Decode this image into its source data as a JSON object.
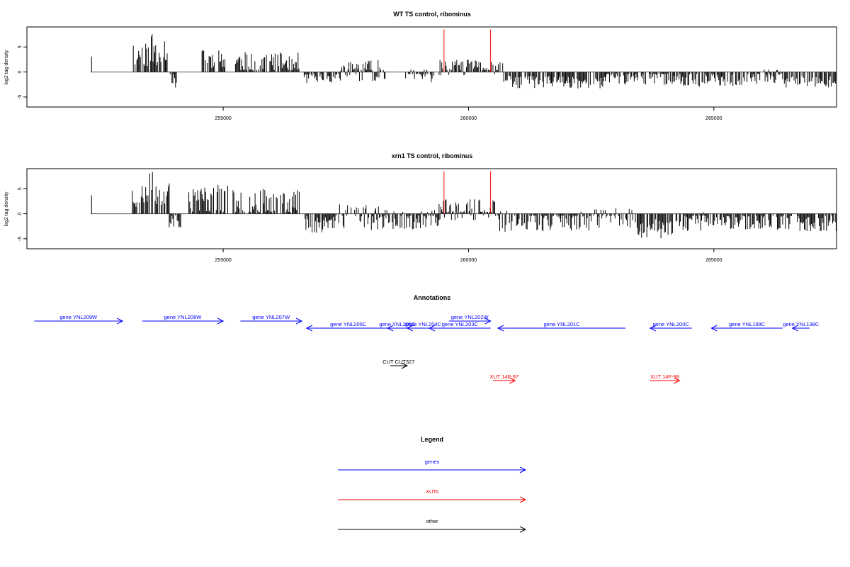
{
  "chart_data": [
    {
      "type": "bar",
      "title": "WT TS control, ribominus",
      "ylabel": "log2 tag density",
      "xlabel": "",
      "xlim": [
        251000,
        267500
      ],
      "ylim": [
        -7,
        9
      ],
      "xticks": [
        255000,
        260000,
        265000
      ],
      "yticks": [
        -5,
        0,
        5
      ],
      "colors": {
        "bars": "#000000",
        "highlight": "#ff0000"
      },
      "seed": 11,
      "segments": [
        {
          "x0": 252300,
          "x1": 252330,
          "mean": 3.5,
          "var": 1.0
        },
        {
          "x0": 253150,
          "x1": 253480,
          "mean": 3.5,
          "var": 1.8
        },
        {
          "x0": 253480,
          "x1": 253900,
          "mean": 4.5,
          "var": 2.5
        },
        {
          "x0": 253920,
          "x1": 254050,
          "mean": -1.8,
          "var": 1.0
        },
        {
          "x0": 254550,
          "x1": 255050,
          "mean": 2.5,
          "var": 1.5
        },
        {
          "x0": 255250,
          "x1": 255950,
          "mean": 2.0,
          "var": 1.5
        },
        {
          "x0": 255950,
          "x1": 256550,
          "mean": 1.8,
          "var": 1.5
        },
        {
          "x0": 256650,
          "x1": 257400,
          "mean": -1.2,
          "var": 0.8
        },
        {
          "x0": 257400,
          "x1": 258300,
          "mean": 0.3,
          "var": 1.5
        },
        {
          "x0": 258700,
          "x1": 259300,
          "mean": -0.8,
          "var": 1.0
        },
        {
          "x0": 259400,
          "x1": 260700,
          "mean": 0.8,
          "var": 1.2
        },
        {
          "x0": 260700,
          "x1": 262800,
          "mean": -2.0,
          "var": 1.0
        },
        {
          "x0": 262800,
          "x1": 264200,
          "mean": -1.3,
          "var": 1.0
        },
        {
          "x0": 264200,
          "x1": 265900,
          "mean": -1.5,
          "var": 1.0
        },
        {
          "x0": 265900,
          "x1": 266400,
          "mean": -0.8,
          "var": 1.0
        },
        {
          "x0": 266400,
          "x1": 267500,
          "mean": -2.0,
          "var": 0.8
        }
      ],
      "highlights": [
        {
          "x": 259500,
          "y": 8.5
        },
        {
          "x": 260450,
          "y": 8.5
        }
      ]
    },
    {
      "type": "bar",
      "title": "xrn1 TS control, ribominus",
      "ylabel": "log2 tag density",
      "xlabel": "",
      "xlim": [
        251000,
        267500
      ],
      "ylim": [
        -7,
        9
      ],
      "xticks": [
        255000,
        260000,
        265000
      ],
      "yticks": [
        -5,
        0,
        5
      ],
      "colors": {
        "bars": "#000000",
        "highlight": "#ff0000"
      },
      "seed": 23,
      "segments": [
        {
          "x0": 252300,
          "x1": 252330,
          "mean": 3.5,
          "var": 1.0
        },
        {
          "x0": 253150,
          "x1": 253450,
          "mean": 3.5,
          "var": 1.8
        },
        {
          "x0": 253450,
          "x1": 253900,
          "mean": 5.0,
          "var": 2.5
        },
        {
          "x0": 253900,
          "x1": 254150,
          "mean": -1.5,
          "var": 1.0
        },
        {
          "x0": 254300,
          "x1": 255100,
          "mean": 3.0,
          "var": 2.0
        },
        {
          "x0": 255200,
          "x1": 256550,
          "mean": 2.5,
          "var": 1.8
        },
        {
          "x0": 256650,
          "x1": 257300,
          "mean": -1.8,
          "var": 1.5
        },
        {
          "x0": 257300,
          "x1": 258300,
          "mean": -0.5,
          "var": 2.0
        },
        {
          "x0": 258300,
          "x1": 259400,
          "mean": -1.0,
          "var": 1.5
        },
        {
          "x0": 259400,
          "x1": 260600,
          "mean": 0.8,
          "var": 1.5
        },
        {
          "x0": 260600,
          "x1": 262500,
          "mean": -1.5,
          "var": 1.5
        },
        {
          "x0": 262500,
          "x1": 263400,
          "mean": -1.0,
          "var": 1.5
        },
        {
          "x0": 263400,
          "x1": 264300,
          "mean": -3.0,
          "var": 1.5
        },
        {
          "x0": 264300,
          "x1": 264800,
          "mean": -1.5,
          "var": 1.5
        },
        {
          "x0": 264800,
          "x1": 266600,
          "mean": -1.5,
          "var": 1.2
        },
        {
          "x0": 266700,
          "x1": 267500,
          "mean": -1.8,
          "var": 1.2
        }
      ],
      "highlights": [
        {
          "x": 259500,
          "y": 8.5
        },
        {
          "x": 260450,
          "y": 8.5
        }
      ]
    }
  ],
  "annotations": {
    "title": "Annotations",
    "xlim": [
      251000,
      267500
    ],
    "items": [
      {
        "label": "gene YNL209W",
        "x0": 251150,
        "x1": 252950,
        "strand": "+",
        "row": 0,
        "color": "#0000ff"
      },
      {
        "label": "gene YNL208W",
        "x0": 253350,
        "x1": 255000,
        "strand": "+",
        "row": 0,
        "color": "#0000ff"
      },
      {
        "label": "gene YNL207W",
        "x0": 255350,
        "x1": 256600,
        "strand": "+",
        "row": 0,
        "color": "#0000ff"
      },
      {
        "label": "gene YNL206C",
        "x0": 256700,
        "x1": 258400,
        "strand": "-",
        "row": 1,
        "color": "#0000ff"
      },
      {
        "label": "gene YNL205C",
        "x0": 258350,
        "x1": 258750,
        "strand": "-",
        "row": 1,
        "color": "#0000ff"
      },
      {
        "label": "gene YNL204C",
        "x0": 258750,
        "x1": 259400,
        "strand": "-",
        "row": 1,
        "color": "#0000ff"
      },
      {
        "label": "gene YNL202W",
        "x0": 259600,
        "x1": 260450,
        "strand": "+",
        "row": 0,
        "color": "#0000ff"
      },
      {
        "label": "gene YNL203C",
        "x0": 259200,
        "x1": 260450,
        "strand": "-",
        "row": 1,
        "color": "#0000ff"
      },
      {
        "label": "gene YNL201C",
        "x0": 260600,
        "x1": 263200,
        "strand": "-",
        "row": 1,
        "color": "#0000ff"
      },
      {
        "label": "gene YNL200C",
        "x0": 263700,
        "x1": 264550,
        "strand": "-",
        "row": 1,
        "color": "#0000ff"
      },
      {
        "label": "gene YNL199C",
        "x0": 264950,
        "x1": 266400,
        "strand": "-",
        "row": 1,
        "color": "#0000ff"
      },
      {
        "label": "gene YNL198C",
        "x0": 266600,
        "x1": 266950,
        "strand": "-",
        "row": 1,
        "color": "#0000ff"
      },
      {
        "label": "CUT CUT327",
        "x0": 258400,
        "x1": 258750,
        "strand": "+",
        "row": 2,
        "color": "#000000"
      },
      {
        "label": "XUT 14F-97",
        "x0": 260500,
        "x1": 260950,
        "strand": "+",
        "row": 3,
        "color": "#ff0000"
      },
      {
        "label": "XUT 14F-98",
        "x0": 263700,
        "x1": 264300,
        "strand": "+",
        "row": 3,
        "color": "#ff0000"
      }
    ]
  },
  "legend": {
    "title": "Legend",
    "items": [
      {
        "label": "genes",
        "color": "#0000ff"
      },
      {
        "label": "XUTs",
        "color": "#ff0000"
      },
      {
        "label": "other",
        "color": "#000000"
      }
    ]
  }
}
